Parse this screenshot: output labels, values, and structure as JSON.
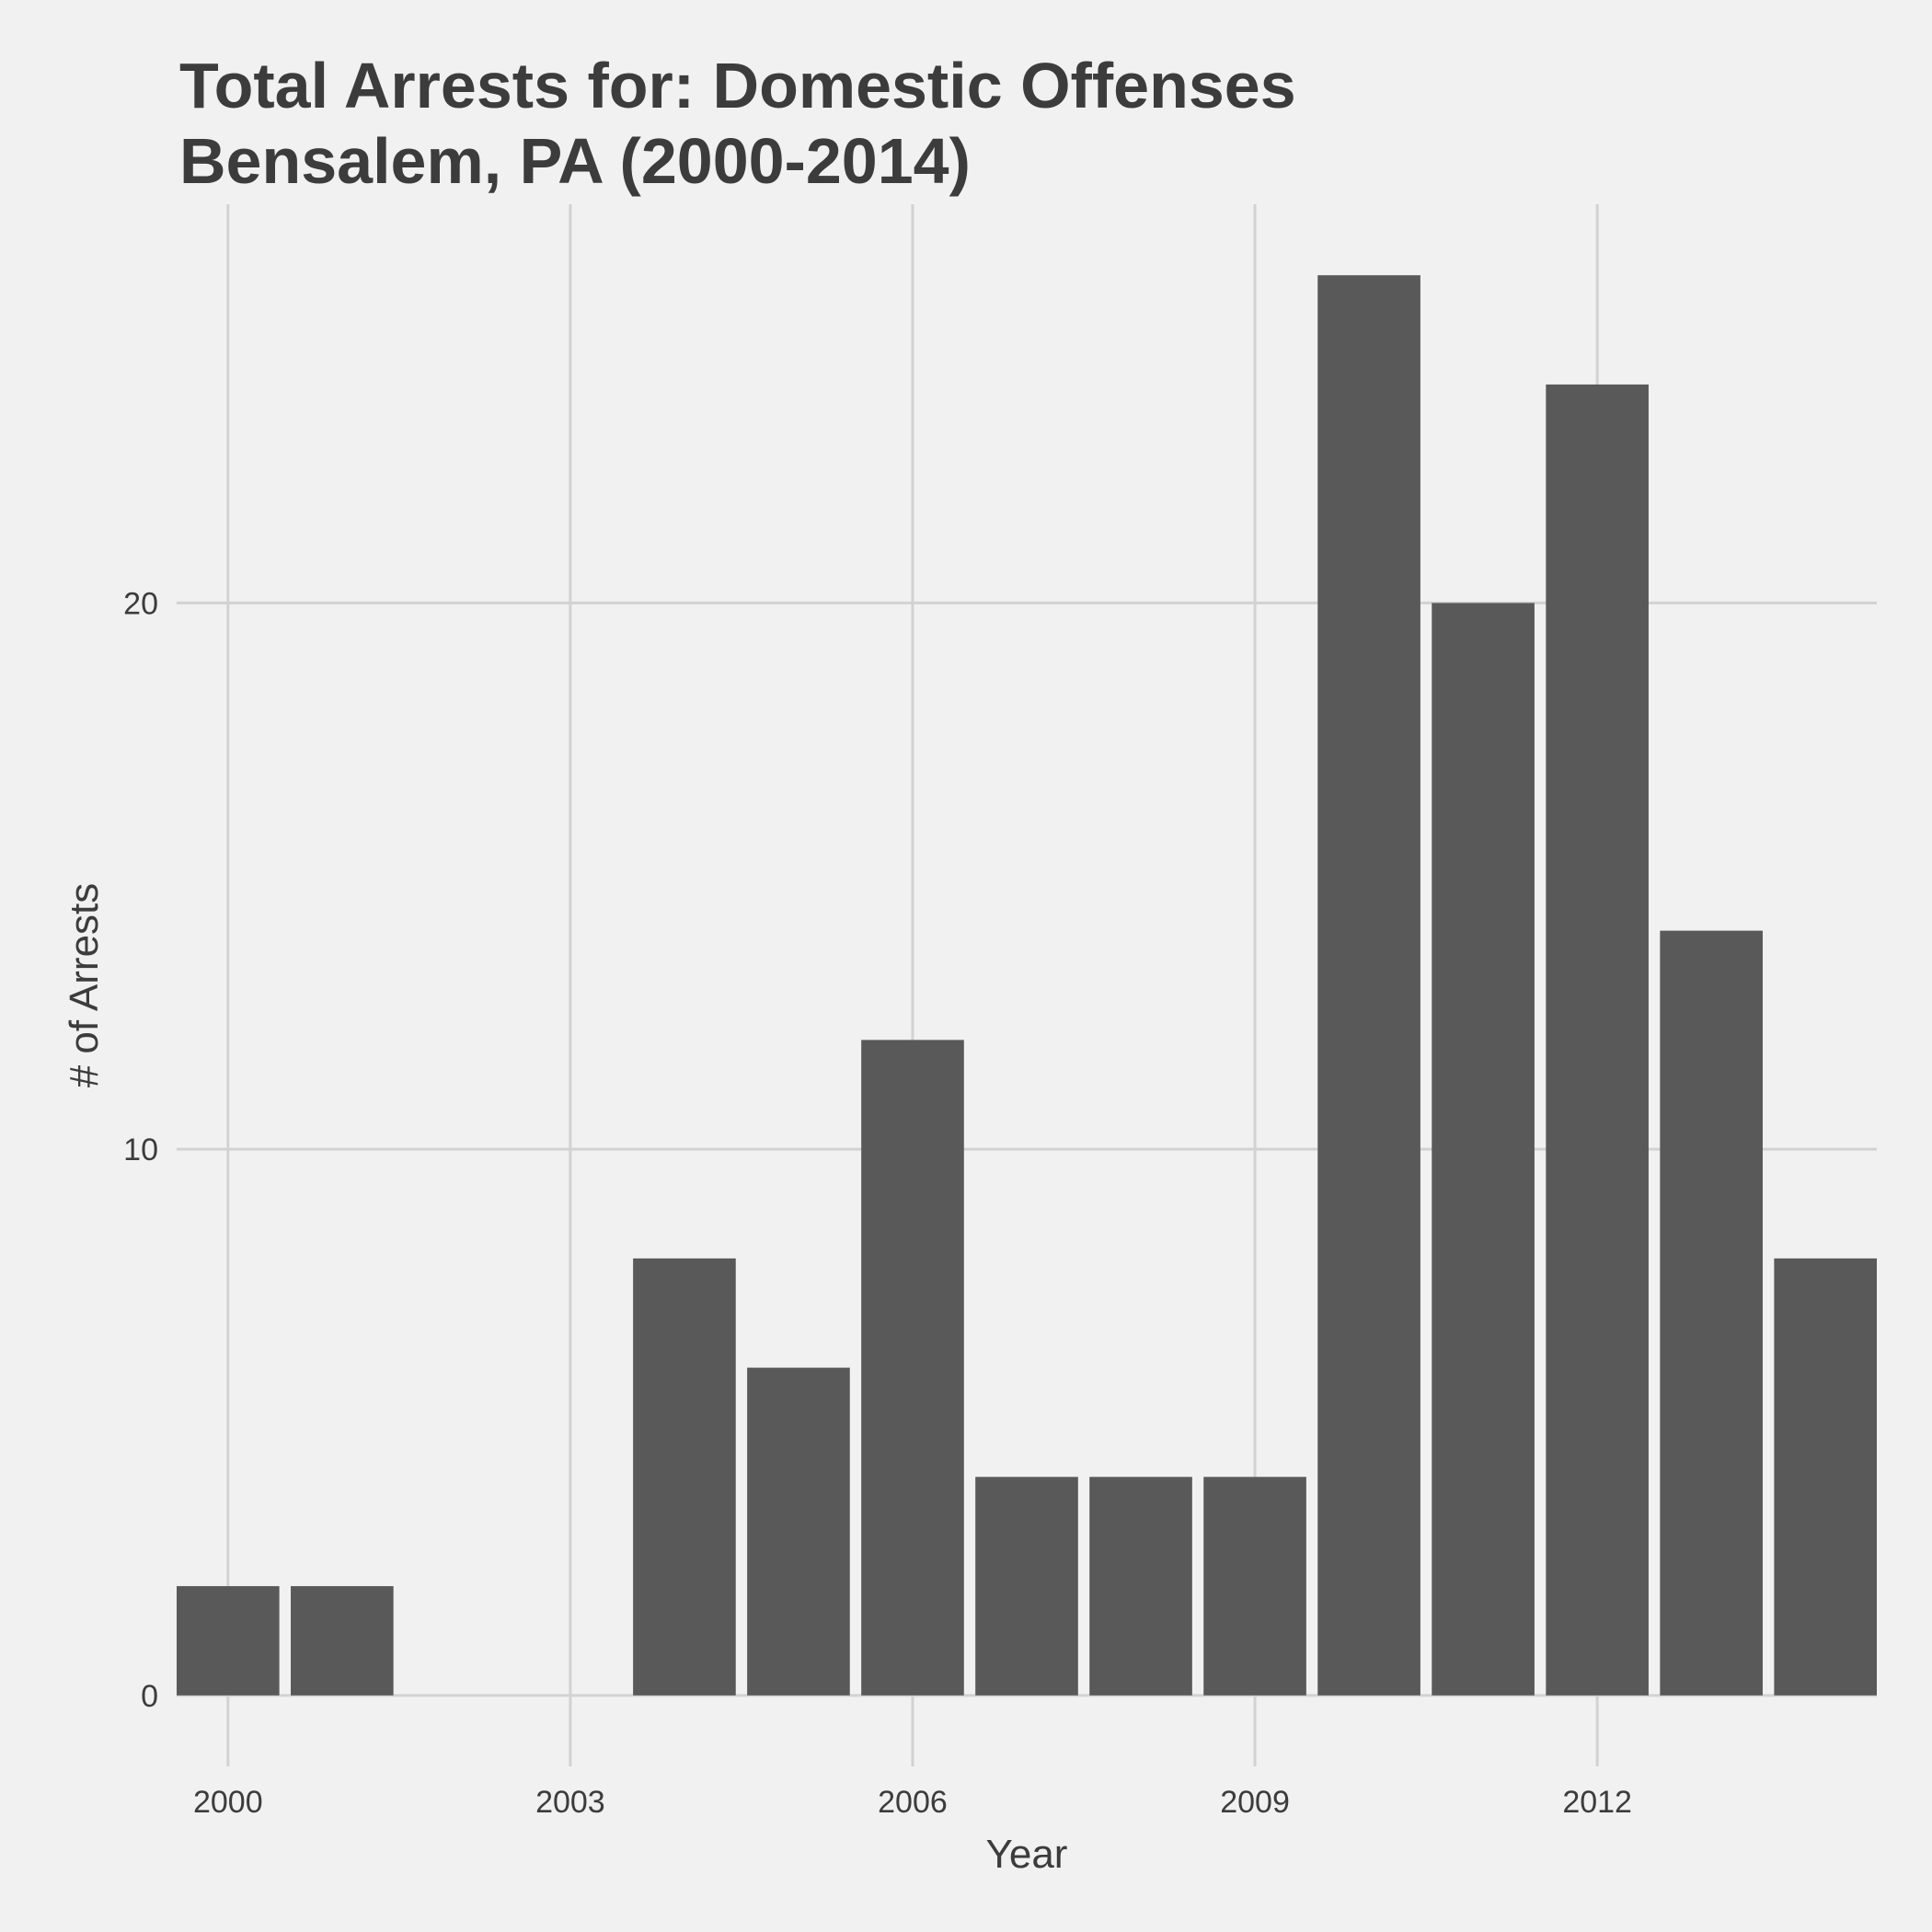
{
  "chart_data": {
    "type": "bar",
    "title_line1": "Total Arrests for: Domestic Offenses",
    "title_line2": "Bensalem, PA (2000-2014)",
    "xlabel": "Year",
    "ylabel": "# of Arrests",
    "x": [
      2000,
      2001,
      2002,
      2003,
      2004,
      2005,
      2006,
      2007,
      2008,
      2009,
      2010,
      2011,
      2012,
      2013,
      2014
    ],
    "values": [
      2,
      2,
      0,
      0,
      8,
      6,
      12,
      4,
      4,
      4,
      26,
      20,
      24,
      14,
      8
    ],
    "x_ticks": [
      "2000",
      "2003",
      "2006",
      "2009",
      "2012"
    ],
    "x_tick_values": [
      2000,
      2003,
      2006,
      2009,
      2012
    ],
    "y_ticks": [
      "0",
      "10",
      "20"
    ],
    "y_tick_values": [
      0,
      10,
      20
    ],
    "xlim": [
      1999.55,
      2014.45
    ],
    "ylim": [
      -1.3,
      27.3
    ],
    "grid": true,
    "bar_color": "#595959",
    "grid_color": "#d2d2d2",
    "background_color": "#f1f1f1",
    "text_color": "#3c3c3c"
  }
}
